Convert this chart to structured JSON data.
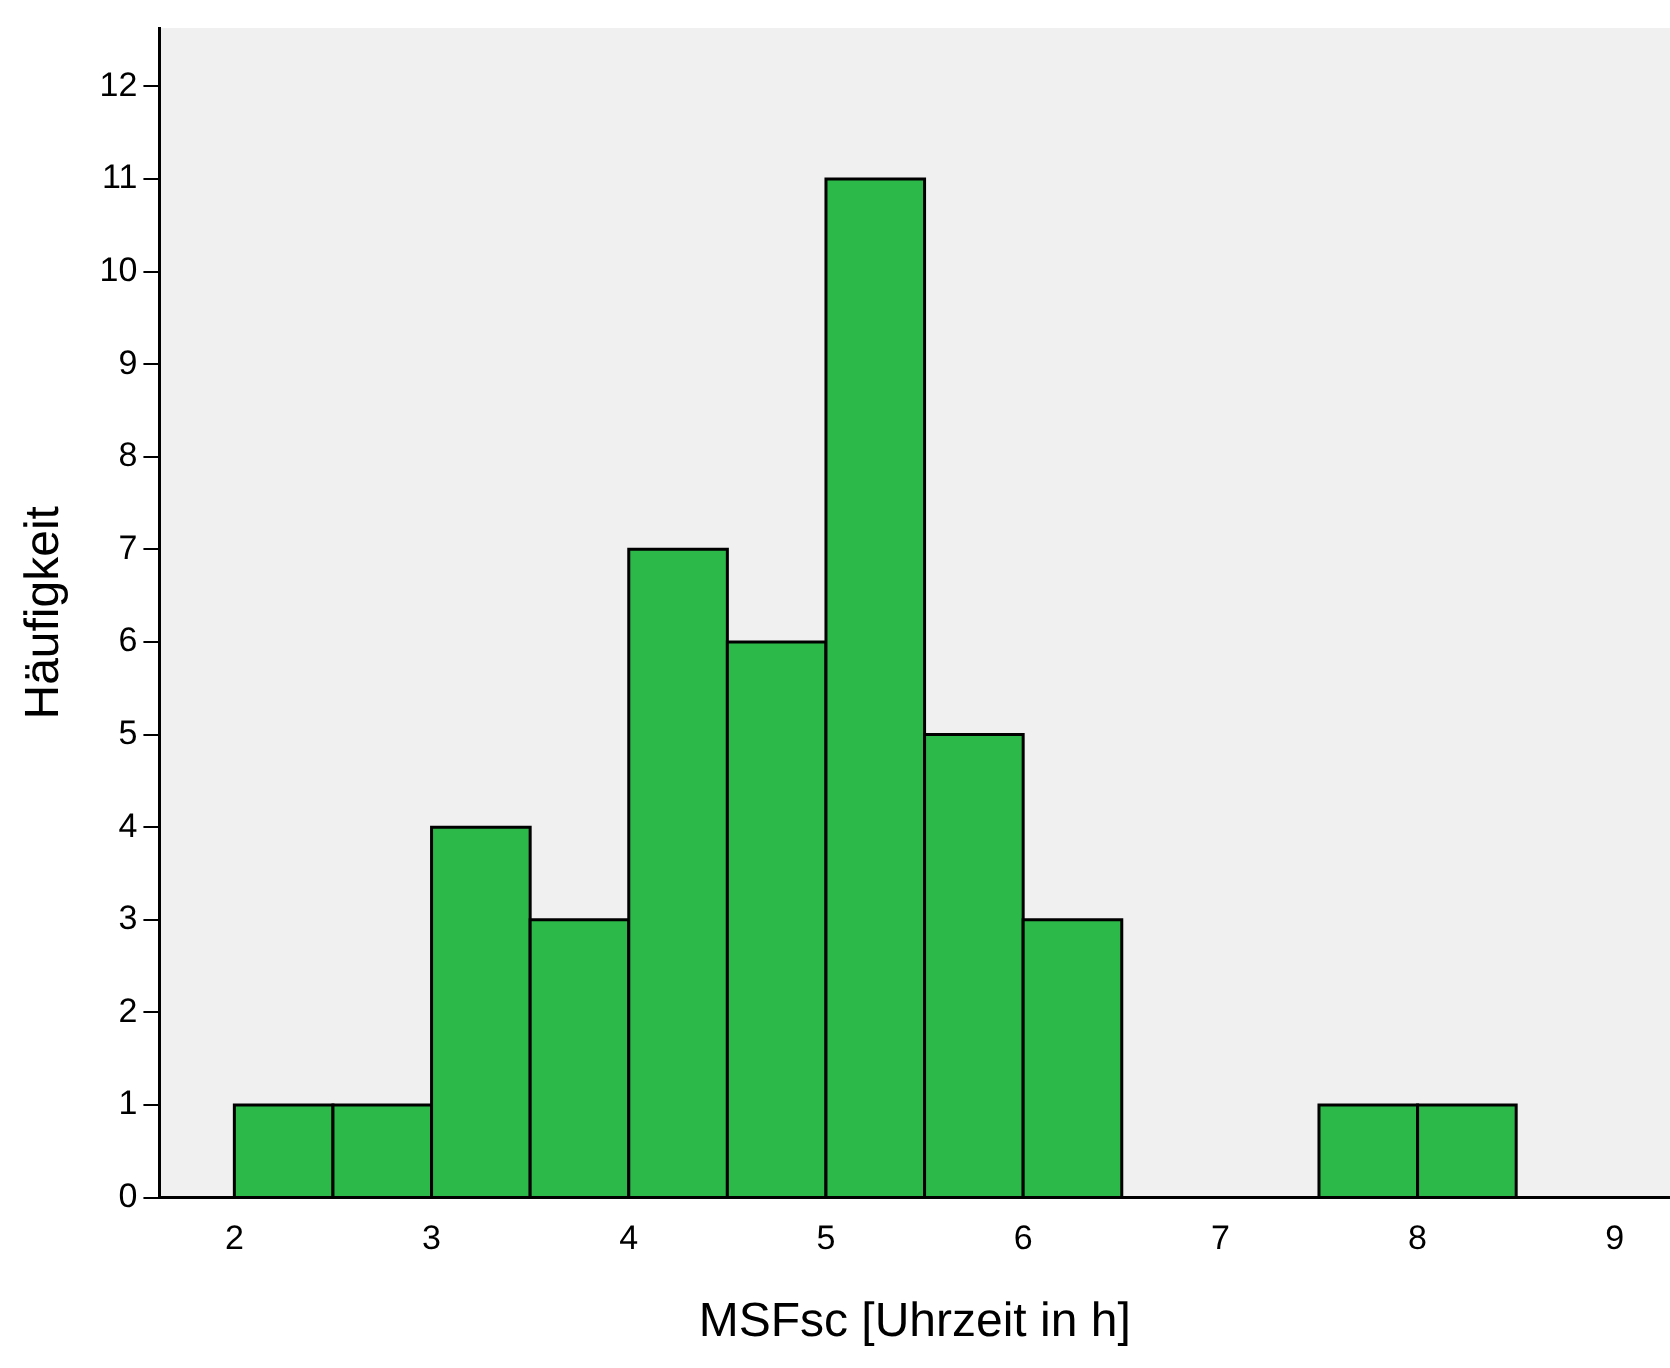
{
  "chart_data": {
    "type": "histogram",
    "xlabel": "MSFsc [Uhrzeit in h]",
    "ylabel": "Häufigkeit",
    "bins": [
      2,
      2.5,
      3,
      3.5,
      4,
      4.5,
      5,
      5.5,
      6,
      6.5,
      7,
      7.5,
      8,
      8.5
    ],
    "values": [
      1,
      1,
      4,
      3,
      7,
      6,
      11,
      5,
      3,
      0,
      0,
      1,
      1
    ],
    "color": "#2db84a",
    "xlim": [
      1.62,
      9.28
    ],
    "xticks": [
      2,
      3,
      4,
      5,
      6,
      7,
      8,
      9
    ],
    "ylim": [
      0,
      12.63
    ],
    "yticks": [
      0,
      1,
      2,
      3,
      4,
      5,
      6,
      7,
      8,
      9,
      10,
      11,
      12
    ],
    "grid": false,
    "legend": false
  }
}
